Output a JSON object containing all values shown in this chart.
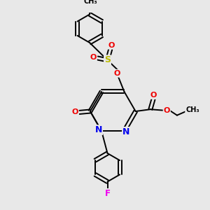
{
  "background_color": "#e8e8e8",
  "figsize": [
    3.0,
    3.0
  ],
  "dpi": 100,
  "bond_color": "#000000",
  "bond_lw": 1.4,
  "atom_colors": {
    "N": "#0000ee",
    "O": "#ee0000",
    "F": "#ee00ee",
    "S": "#bbbb00",
    "C": "#000000"
  }
}
